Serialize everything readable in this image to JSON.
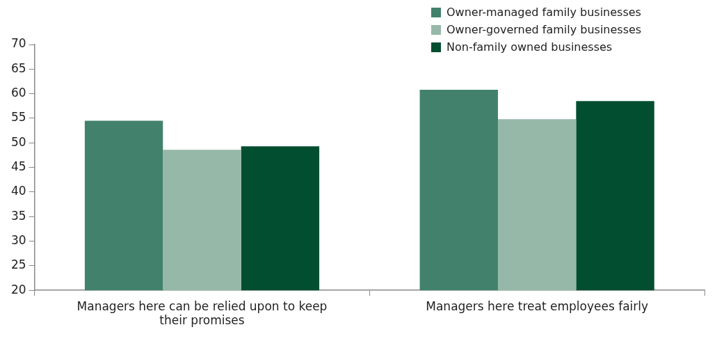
{
  "chart_data": {
    "type": "bar",
    "categories": [
      "Managers here can be relied upon to keep their promises",
      "Managers here treat employees fairly"
    ],
    "series": [
      {
        "name": "Owner-managed family businesses",
        "color": "#42826c",
        "values": [
          54.5,
          60.8
        ]
      },
      {
        "name": "Owner-governed family businesses",
        "color": "#96b8a8",
        "values": [
          48.6,
          54.8
        ]
      },
      {
        "name": "Non-family owned businesses",
        "color": "#024e30",
        "values": [
          49.3,
          58.5
        ]
      }
    ],
    "ylim": [
      20,
      70
    ],
    "yticks": [
      20,
      25,
      30,
      35,
      40,
      45,
      50,
      55,
      60,
      65,
      70
    ],
    "grid": false,
    "legend": "top right"
  }
}
